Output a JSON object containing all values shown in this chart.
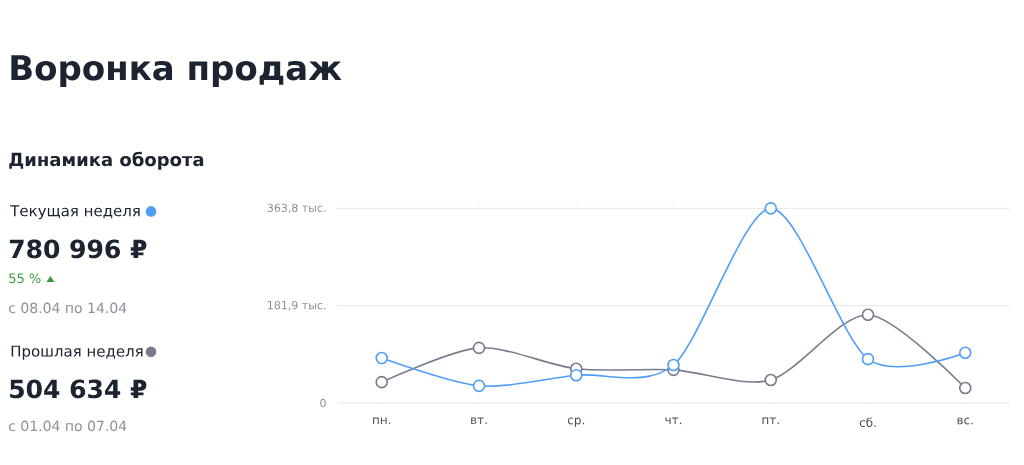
{
  "chart_data": {
    "type": "line",
    "title": "Воронка продаж",
    "subtitle": "Динамика оборота",
    "categories": [
      "пн.",
      "вт.",
      "ср.",
      "чт.",
      "пт.",
      "сб.",
      "вс."
    ],
    "series": [
      {
        "name": "Текущая неделя",
        "color": "#4f9ef5",
        "values": [
          84,
          32,
          52,
          71,
          363.8,
          82,
          94
        ]
      },
      {
        "name": "Прошлая неделя",
        "color": "#767c8c",
        "values": [
          39,
          103,
          64,
          62,
          43,
          165,
          28
        ]
      }
    ],
    "ylim": [
      0,
      363.8
    ],
    "yticks": [
      0,
      {
        "value": 181.9,
        "label": "181,9 тыс."
      },
      {
        "value": 363.8,
        "label": "363,8 тыс."
      }
    ],
    "grid": "y",
    "legend": "left",
    "marker": "circle",
    "line_style": "solid",
    "annotations": [
      "780 996 ₽",
      "55 %",
      "с 08.04 по 14.04",
      "504 634 ₽",
      "с 01.04 по 07.04"
    ]
  }
}
